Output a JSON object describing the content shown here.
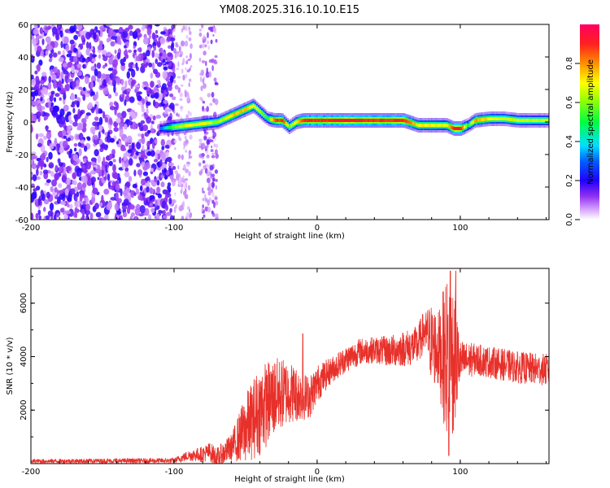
{
  "title": "YM08.2025.316.10.10.E15",
  "chart_data": [
    {
      "type": "heatmap",
      "name": "spectrogram",
      "xlabel": "Height of straight line (km)",
      "ylabel": "Frequency (Hz)",
      "xlim": [
        -200,
        162
      ],
      "ylim": [
        -60,
        60
      ],
      "x_ticks": [
        -200,
        -100,
        0,
        100
      ],
      "y_ticks": [
        -60,
        -40,
        -20,
        0,
        20,
        40,
        60
      ],
      "colorbar": {
        "label": "Normalized spectral amplitude",
        "range": [
          0,
          1
        ],
        "ticks": [
          "0.0",
          "0.2",
          "0.4",
          "0.6",
          "0.8"
        ],
        "stops": [
          "#ffffff",
          "#c070ff",
          "#6000e0",
          "#0000ff",
          "#00e0ff",
          "#00ff40",
          "#a0ff00",
          "#ffff00",
          "#ff9000",
          "#ff0030",
          "#ff0060"
        ]
      },
      "ridge": {
        "x": [
          -110,
          -100,
          -90,
          -80,
          -70,
          -60,
          -50,
          -45,
          -40,
          -35,
          -30,
          -25,
          -20,
          -15,
          -10,
          0,
          10,
          20,
          30,
          40,
          50,
          60,
          70,
          80,
          90,
          95,
          100,
          105,
          110,
          120,
          130,
          140,
          150,
          162
        ],
        "freq": [
          -4,
          -3,
          -2,
          -1,
          0,
          4,
          8,
          10,
          6,
          2,
          1,
          1,
          -3,
          0,
          1,
          1,
          1,
          1,
          1,
          1,
          1,
          1,
          -2,
          -2,
          -2,
          -4,
          -4,
          -2,
          1,
          2,
          2,
          1,
          1,
          1
        ],
        "amplitude": [
          0.3,
          0.6,
          0.7,
          0.7,
          0.6,
          0.75,
          0.75,
          0.7,
          0.6,
          0.5,
          0.85,
          0.9,
          0.6,
          0.7,
          0.9,
          0.9,
          0.9,
          0.95,
          0.9,
          0.9,
          0.9,
          0.9,
          0.7,
          0.7,
          0.65,
          0.95,
          0.9,
          0.5,
          0.8,
          0.7,
          0.65,
          0.65,
          0.65,
          0.65
        ]
      },
      "noise_region": {
        "x_from": -200,
        "x_to": -70,
        "amplitude": 0.15
      }
    },
    {
      "type": "line",
      "name": "snr",
      "xlabel": "Height of straight line (km)",
      "ylabel": "SNR (10 * v/v)",
      "xlim": [
        -200,
        162
      ],
      "ylim": [
        0,
        7300
      ],
      "x_ticks": [
        -200,
        -100,
        0,
        100
      ],
      "y_ticks": [
        2000,
        4000,
        6000
      ],
      "color": "#e8302a",
      "envelope": {
        "x": [
          -200,
          -150,
          -100,
          -90,
          -80,
          -75,
          -70,
          -60,
          -50,
          -40,
          -30,
          -20,
          -10,
          -5,
          0,
          10,
          20,
          30,
          40,
          50,
          60,
          70,
          75,
          80,
          85,
          90,
          95,
          100,
          110,
          120,
          130,
          140,
          150,
          162
        ],
        "y": [
          90,
          100,
          110,
          300,
          350,
          450,
          200,
          600,
          1300,
          2000,
          2500,
          2700,
          2500,
          2500,
          3000,
          3500,
          3900,
          4200,
          4250,
          4200,
          4300,
          4400,
          5000,
          4500,
          4200,
          4000,
          4000,
          3800,
          3900,
          3800,
          3700,
          3600,
          3550,
          3500
        ]
      },
      "noise": {
        "x": [
          -200,
          -100,
          -90,
          -60,
          -50,
          -40,
          -30,
          -20,
          -10,
          0,
          10,
          40,
          75,
          80,
          85,
          90,
          95,
          100,
          110,
          162
        ],
        "amp": [
          80,
          100,
          200,
          500,
          1300,
          1700,
          1500,
          1200,
          900,
          700,
          500,
          500,
          800,
          1500,
          1500,
          3000,
          3000,
          800,
          600,
          600
        ]
      },
      "spikes": [
        {
          "x": -10,
          "y": 4850
        },
        {
          "x": -35,
          "y": 3300
        },
        {
          "x": 76,
          "y": 5500
        },
        {
          "x": 93,
          "y": 7200
        },
        {
          "x": 97,
          "y": 7200
        },
        {
          "x": 92,
          "y": 300
        }
      ]
    }
  ]
}
